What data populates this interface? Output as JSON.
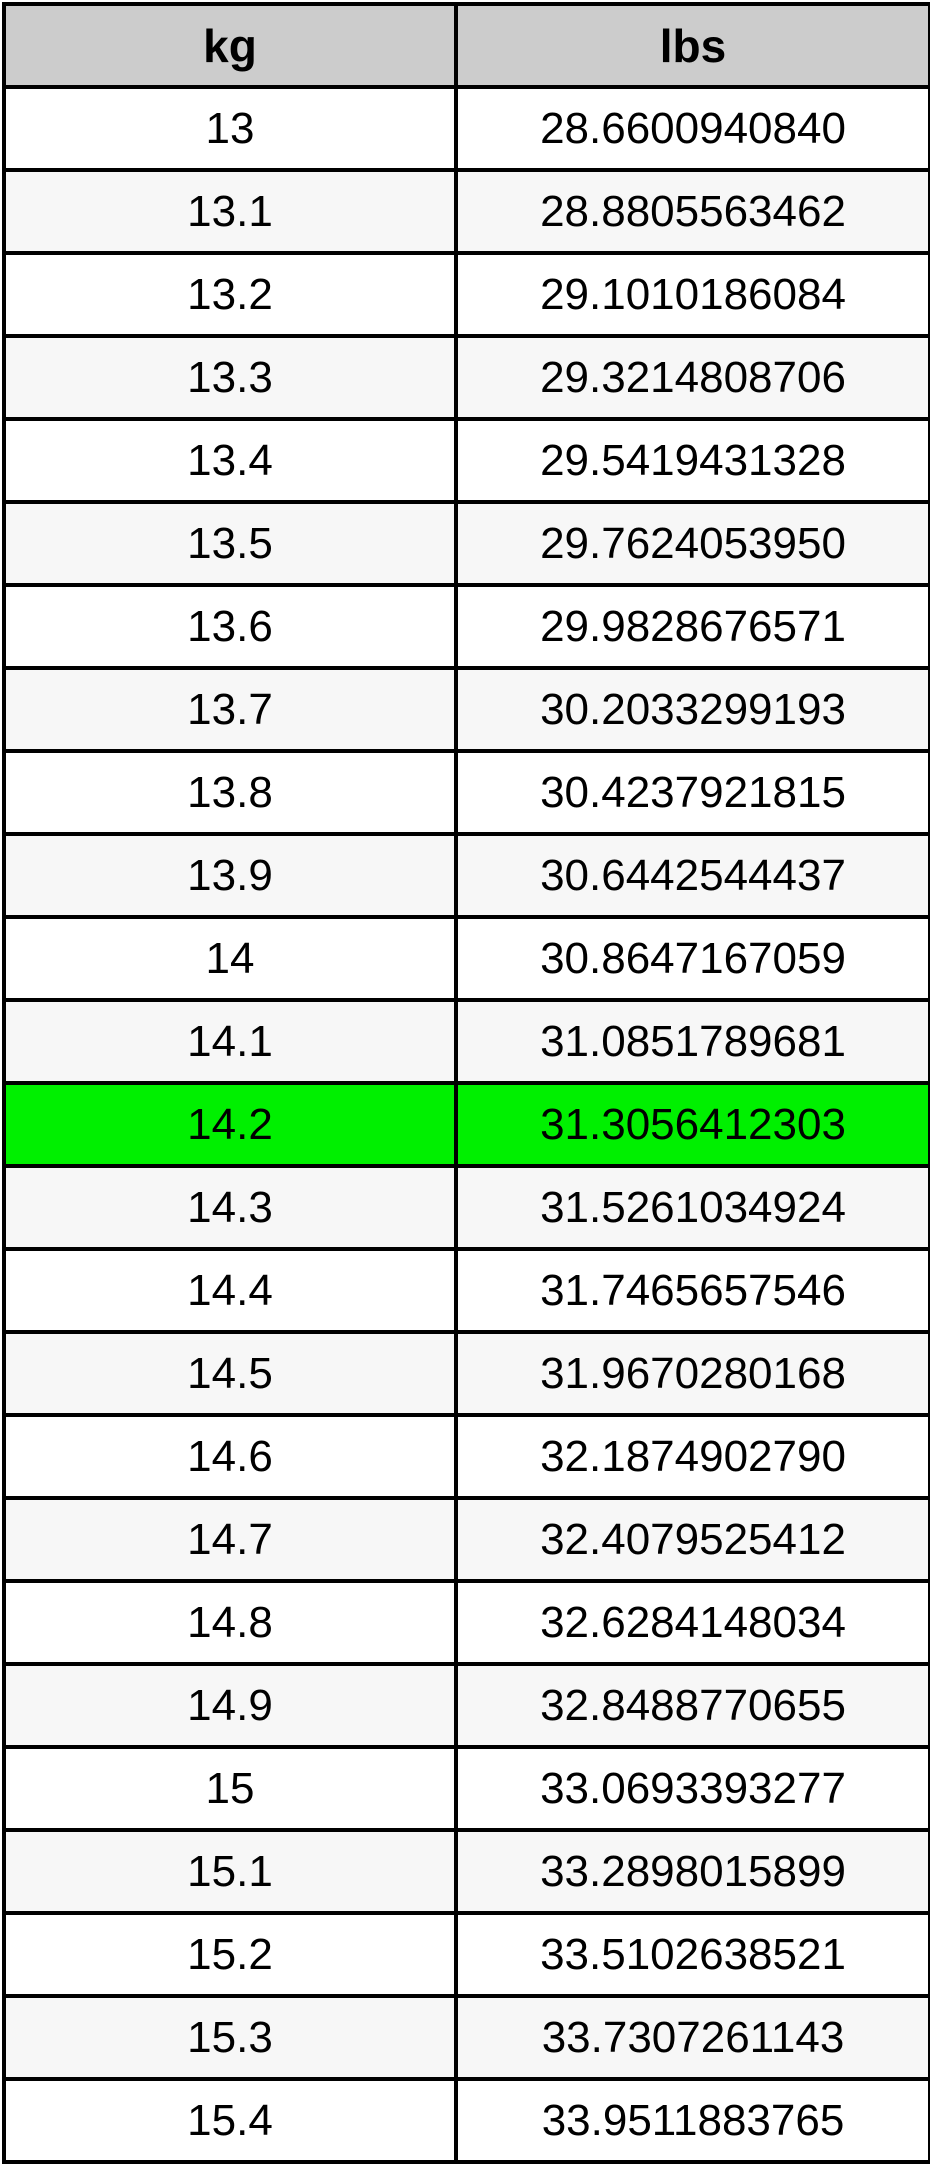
{
  "table": {
    "columns": [
      {
        "key": "kg",
        "label": "kg"
      },
      {
        "key": "lbs",
        "label": "lbs"
      }
    ],
    "highlighted_kg": "14.2",
    "rows": [
      {
        "kg": "13",
        "lbs": "28.6600940840"
      },
      {
        "kg": "13.1",
        "lbs": "28.8805563462"
      },
      {
        "kg": "13.2",
        "lbs": "29.1010186084"
      },
      {
        "kg": "13.3",
        "lbs": "29.3214808706"
      },
      {
        "kg": "13.4",
        "lbs": "29.5419431328"
      },
      {
        "kg": "13.5",
        "lbs": "29.7624053950"
      },
      {
        "kg": "13.6",
        "lbs": "29.9828676571"
      },
      {
        "kg": "13.7",
        "lbs": "30.2033299193"
      },
      {
        "kg": "13.8",
        "lbs": "30.4237921815"
      },
      {
        "kg": "13.9",
        "lbs": "30.6442544437"
      },
      {
        "kg": "14",
        "lbs": "30.8647167059"
      },
      {
        "kg": "14.1",
        "lbs": "31.0851789681"
      },
      {
        "kg": "14.2",
        "lbs": "31.3056412303"
      },
      {
        "kg": "14.3",
        "lbs": "31.5261034924"
      },
      {
        "kg": "14.4",
        "lbs": "31.7465657546"
      },
      {
        "kg": "14.5",
        "lbs": "31.9670280168"
      },
      {
        "kg": "14.6",
        "lbs": "32.1874902790"
      },
      {
        "kg": "14.7",
        "lbs": "32.4079525412"
      },
      {
        "kg": "14.8",
        "lbs": "32.6284148034"
      },
      {
        "kg": "14.9",
        "lbs": "32.8488770655"
      },
      {
        "kg": "15",
        "lbs": "33.0693393277"
      },
      {
        "kg": "15.1",
        "lbs": "33.2898015899"
      },
      {
        "kg": "15.2",
        "lbs": "33.5102638521"
      },
      {
        "kg": "15.3",
        "lbs": "33.7307261143"
      },
      {
        "kg": "15.4",
        "lbs": "33.9511883765"
      }
    ],
    "colors": {
      "header_bg": "#cccccc",
      "row_bg": "#ffffff",
      "row_alt_bg": "#f7f7f7",
      "highlight_bg": "#00f000",
      "border": "#000000",
      "text": "#000000"
    }
  }
}
